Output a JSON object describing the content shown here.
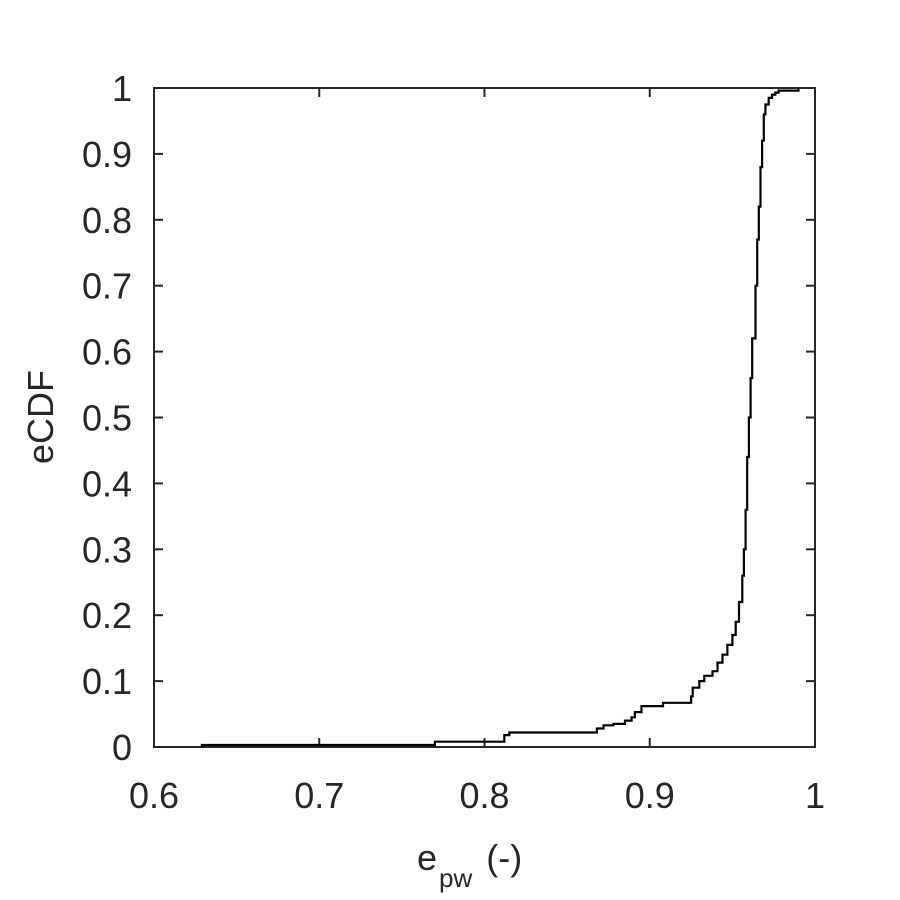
{
  "chart_data": {
    "type": "line",
    "subtype": "empirical-cdf-step",
    "title": "",
    "xlabel": {
      "main": "e",
      "subscript": "pw",
      "suffix": "(-)"
    },
    "ylabel": "eCDF",
    "xlim": [
      0.6,
      1.0
    ],
    "ylim": [
      0,
      1.0
    ],
    "x_ticks": [
      0.6,
      0.7,
      0.8,
      0.9,
      1.0
    ],
    "x_tick_labels": [
      "0.6",
      "0.7",
      "0.8",
      "0.9",
      "1"
    ],
    "y_ticks": [
      0,
      0.1,
      0.2,
      0.3,
      0.4,
      0.5,
      0.6,
      0.7,
      0.8,
      0.9,
      1.0
    ],
    "y_tick_labels": [
      "0",
      "0.1",
      "0.2",
      "0.3",
      "0.4",
      "0.5",
      "0.6",
      "0.7",
      "0.8",
      "0.9",
      "1"
    ],
    "grid": false,
    "line_color": "#000000",
    "series": [
      {
        "name": "eCDF",
        "x": [
          0.629,
          0.77,
          0.812,
          0.815,
          0.868,
          0.872,
          0.878,
          0.885,
          0.889,
          0.891,
          0.895,
          0.908,
          0.925,
          0.926,
          0.93,
          0.933,
          0.938,
          0.941,
          0.944,
          0.947,
          0.95,
          0.952,
          0.954,
          0.956,
          0.957,
          0.958,
          0.959,
          0.96,
          0.961,
          0.962,
          0.964,
          0.965,
          0.966,
          0.967,
          0.968,
          0.969,
          0.97,
          0.972,
          0.974,
          0.976,
          0.978,
          0.99
        ],
        "y": [
          0.003,
          0.008,
          0.018,
          0.022,
          0.028,
          0.033,
          0.035,
          0.04,
          0.045,
          0.053,
          0.062,
          0.067,
          0.077,
          0.09,
          0.1,
          0.108,
          0.115,
          0.128,
          0.14,
          0.155,
          0.17,
          0.19,
          0.22,
          0.26,
          0.3,
          0.36,
          0.44,
          0.5,
          0.56,
          0.62,
          0.7,
          0.77,
          0.82,
          0.88,
          0.92,
          0.96,
          0.975,
          0.985,
          0.99,
          0.993,
          0.996,
          1.0
        ]
      }
    ]
  }
}
